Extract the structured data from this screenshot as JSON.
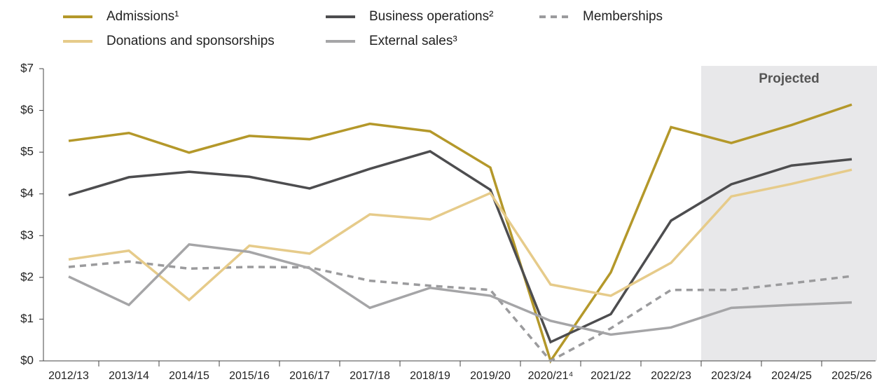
{
  "chart_data": {
    "type": "line",
    "categories": [
      "2012/13",
      "2013/14",
      "2014/15",
      "2015/16",
      "2016/17",
      "2017/18",
      "2018/19",
      "2019/20",
      "2020/21⁴",
      "2021/22",
      "2022/23",
      "2023/24",
      "2024/25",
      "2025/26"
    ],
    "series": [
      {
        "name": "Admissions¹",
        "color": "#b4982a",
        "values": [
          5.27,
          5.46,
          4.99,
          5.39,
          5.31,
          5.68,
          5.5,
          4.63,
          0.0,
          2.12,
          5.6,
          5.22,
          5.65,
          6.14
        ]
      },
      {
        "name": "Business operations²",
        "color": "#4d4d4f",
        "values": [
          3.97,
          4.4,
          4.53,
          4.41,
          4.13,
          4.6,
          5.02,
          4.1,
          0.45,
          1.12,
          3.36,
          4.23,
          4.68,
          4.83
        ]
      },
      {
        "name": "Memberships",
        "color": "#9b9b9d",
        "dash": true,
        "values": [
          2.25,
          2.38,
          2.21,
          2.25,
          2.24,
          1.92,
          1.8,
          1.7,
          0.0,
          0.78,
          1.7,
          1.7,
          1.86,
          2.03
        ]
      },
      {
        "name": "Donations and sponsorships",
        "color": "#e6cb8a",
        "values": [
          2.43,
          2.64,
          1.46,
          2.76,
          2.57,
          3.51,
          3.39,
          4.02,
          1.83,
          1.56,
          2.35,
          3.94,
          4.24,
          4.58
        ]
      },
      {
        "name": "External sales³",
        "color": "#a5a5a7",
        "values": [
          2.02,
          1.34,
          2.79,
          2.61,
          2.22,
          1.27,
          1.75,
          1.56,
          0.96,
          0.63,
          0.8,
          1.27,
          1.34,
          1.4
        ]
      }
    ],
    "ylim": [
      0,
      7
    ],
    "yticks": [
      {
        "value": 0,
        "label": "$0"
      },
      {
        "value": 1,
        "label": "$1"
      },
      {
        "value": 2,
        "label": "$2"
      },
      {
        "value": 3,
        "label": "$3"
      },
      {
        "value": 4,
        "label": "$4"
      },
      {
        "value": 5,
        "label": "$5"
      },
      {
        "value": 6,
        "label": "$6"
      },
      {
        "value": 7,
        "label": "$7"
      }
    ],
    "annotations": [
      {
        "text": "Projected",
        "from_category": 11
      }
    ]
  }
}
